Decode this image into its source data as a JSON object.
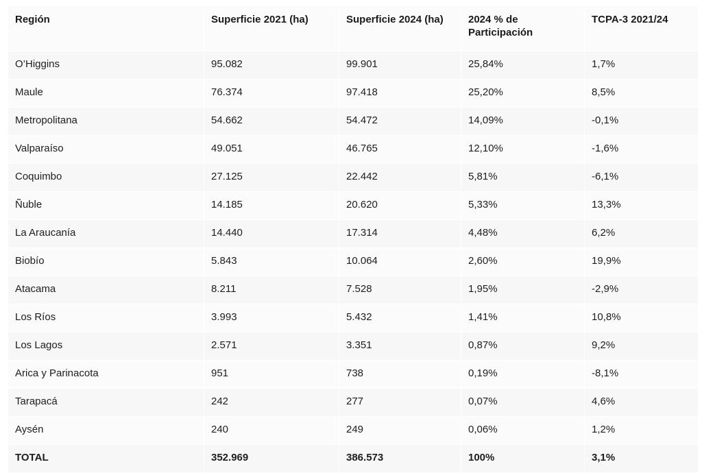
{
  "table": {
    "headers": [
      "Región",
      "Superficie 2021 (ha)",
      "Superficie 2024 (ha)",
      "2024 % de Participación",
      "TCPA-3 2021/24"
    ],
    "rows": [
      [
        "O’Higgins",
        "95.082",
        "99.901",
        "25,84%",
        "1,7%"
      ],
      [
        "Maule",
        "76.374",
        "97.418",
        "25,20%",
        "8,5%"
      ],
      [
        "Metropolitana",
        "54.662",
        "54.472",
        "14,09%",
        "-0,1%"
      ],
      [
        "Valparaíso",
        "49.051",
        "46.765",
        "12,10%",
        "-1,6%"
      ],
      [
        "Coquimbo",
        "27.125",
        "22.442",
        "5,81%",
        "-6,1%"
      ],
      [
        "Ñuble",
        "14.185",
        "20.620",
        "5,33%",
        "13,3%"
      ],
      [
        "La Araucanía",
        "14.440",
        "17.314",
        "4,48%",
        "6,2%"
      ],
      [
        "Biobío",
        "5.843",
        "10.064",
        "2,60%",
        "19,9%"
      ],
      [
        "Atacama",
        "8.211",
        "7.528",
        "1,95%",
        "-2,9%"
      ],
      [
        "Los Ríos",
        "3.993",
        "5.432",
        "1,41%",
        "10,8%"
      ],
      [
        "Los Lagos",
        "2.571",
        "3.351",
        "0,87%",
        "9,2%"
      ],
      [
        "Arica y Parinacota",
        "951",
        "738",
        "0,19%",
        "-8,1%"
      ],
      [
        "Tarapacá",
        "242",
        "277",
        "0,07%",
        "4,6%"
      ],
      [
        "Aysén",
        "240",
        "249",
        "0,06%",
        "1,2%"
      ]
    ],
    "total": [
      "TOTAL",
      "352.969",
      "386.573",
      "100%",
      "3,1%"
    ]
  }
}
